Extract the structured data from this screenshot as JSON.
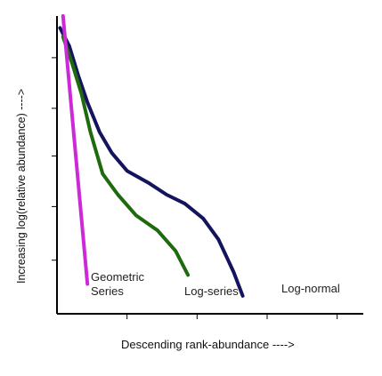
{
  "chart_data": {
    "type": "line",
    "title": "",
    "xlabel": "Descending rank-abundance ---->",
    "ylabel": "Increasing log(relative abundance) ---->",
    "x_ticks_count": 4,
    "y_ticks_count": 5,
    "series": [
      {
        "name": "Geometric Series",
        "label_lines": [
          "Geometric",
          "Series"
        ],
        "color": "#cc2ad6",
        "points": [
          [
            0.02,
            1.0
          ],
          [
            0.1,
            0.1
          ]
        ]
      },
      {
        "name": "Log-series",
        "label_lines": [
          "Log-series"
        ],
        "color": "#1e6a0e",
        "points": [
          [
            0.02,
            0.93
          ],
          [
            0.05,
            0.84
          ],
          [
            0.08,
            0.74
          ],
          [
            0.11,
            0.61
          ],
          [
            0.15,
            0.47
          ],
          [
            0.2,
            0.4
          ],
          [
            0.26,
            0.33
          ],
          [
            0.33,
            0.28
          ],
          [
            0.39,
            0.21
          ],
          [
            0.43,
            0.13
          ]
        ]
      },
      {
        "name": "Log-normal",
        "label_lines": [
          "Log-normal"
        ],
        "color": "#14145e",
        "points": [
          [
            0.01,
            0.96
          ],
          [
            0.04,
            0.9
          ],
          [
            0.07,
            0.8
          ],
          [
            0.1,
            0.71
          ],
          [
            0.14,
            0.61
          ],
          [
            0.18,
            0.54
          ],
          [
            0.23,
            0.48
          ],
          [
            0.3,
            0.44
          ],
          [
            0.36,
            0.4
          ],
          [
            0.42,
            0.37
          ],
          [
            0.48,
            0.32
          ],
          [
            0.53,
            0.25
          ],
          [
            0.58,
            0.14
          ],
          [
            0.61,
            0.06
          ]
        ]
      }
    ]
  }
}
